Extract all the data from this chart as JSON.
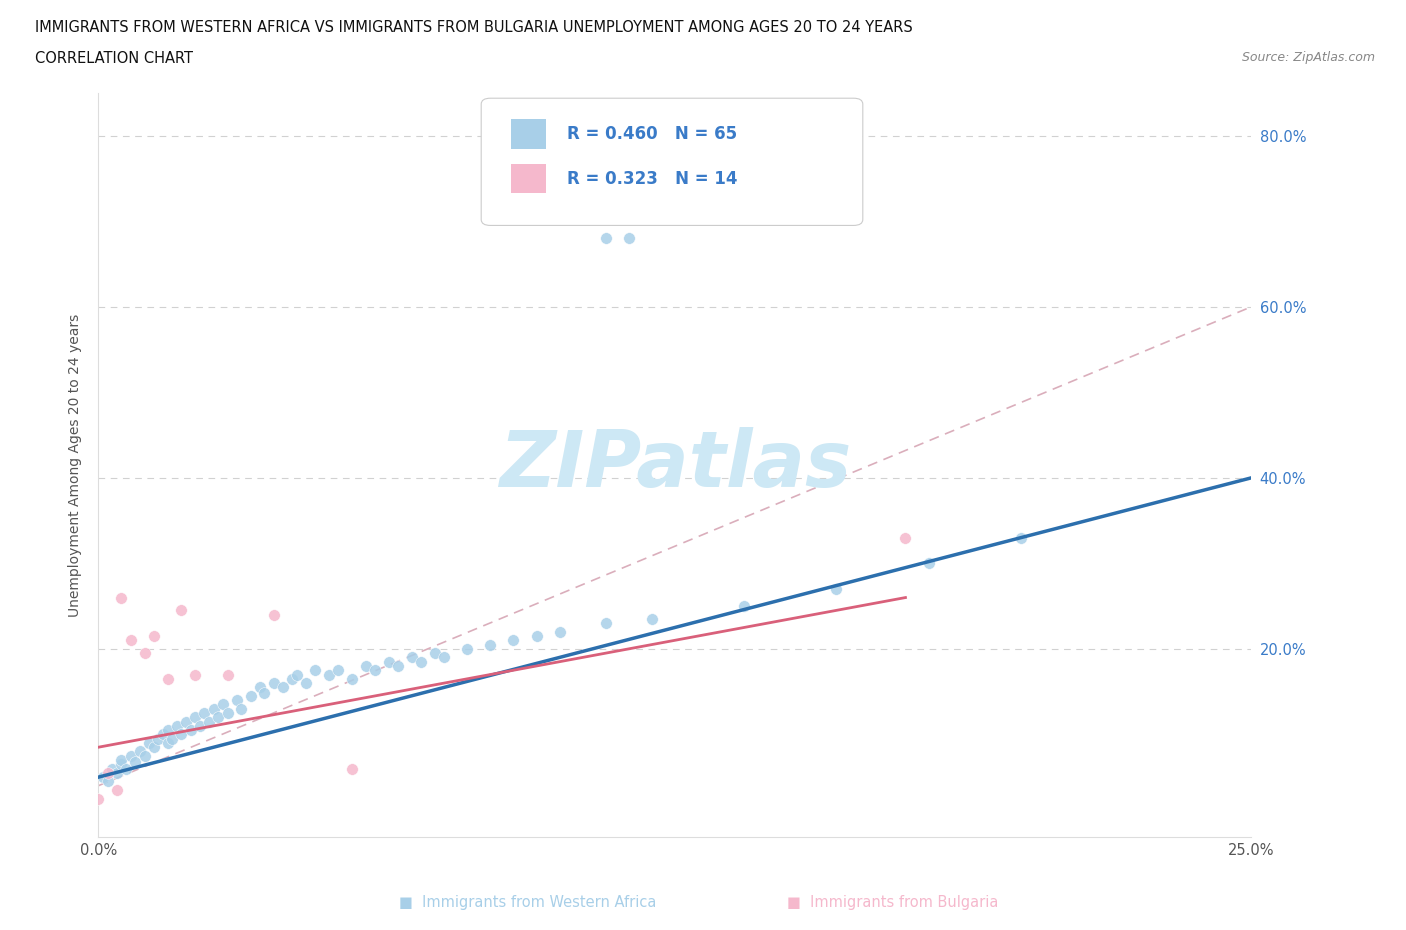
{
  "title_line1": "IMMIGRANTS FROM WESTERN AFRICA VS IMMIGRANTS FROM BULGARIA UNEMPLOYMENT AMONG AGES 20 TO 24 YEARS",
  "title_line2": "CORRELATION CHART",
  "source": "Source: ZipAtlas.com",
  "ylabel": "Unemployment Among Ages 20 to 24 years",
  "xlim": [
    0.0,
    0.25
  ],
  "ylim": [
    -0.02,
    0.85
  ],
  "color_western_africa": "#a8cfe8",
  "color_bulgaria": "#f5b8cc",
  "color_line_western_africa": "#2c6fad",
  "color_line_bulgaria": "#d9607a",
  "color_dashed": "#d4a0b0",
  "color_axis_blue": "#3a7bc8",
  "watermark_color": "#cde8f5",
  "western_africa_R": 0.46,
  "western_africa_N": 65,
  "bulgaria_R": 0.323,
  "bulgaria_N": 14,
  "wa_x": [
    0.001,
    0.002,
    0.003,
    0.004,
    0.005,
    0.005,
    0.006,
    0.007,
    0.008,
    0.009,
    0.01,
    0.011,
    0.012,
    0.013,
    0.014,
    0.015,
    0.015,
    0.016,
    0.017,
    0.018,
    0.019,
    0.02,
    0.021,
    0.022,
    0.023,
    0.024,
    0.025,
    0.026,
    0.027,
    0.028,
    0.03,
    0.031,
    0.033,
    0.035,
    0.036,
    0.038,
    0.04,
    0.042,
    0.043,
    0.045,
    0.047,
    0.05,
    0.052,
    0.055,
    0.058,
    0.06,
    0.063,
    0.065,
    0.068,
    0.07,
    0.073,
    0.075,
    0.08,
    0.085,
    0.09,
    0.095,
    0.1,
    0.11,
    0.115,
    0.12,
    0.14,
    0.16,
    0.18,
    0.2,
    0.11
  ],
  "wa_y": [
    0.05,
    0.045,
    0.06,
    0.055,
    0.065,
    0.07,
    0.06,
    0.075,
    0.068,
    0.08,
    0.075,
    0.09,
    0.085,
    0.095,
    0.1,
    0.09,
    0.105,
    0.095,
    0.11,
    0.1,
    0.115,
    0.105,
    0.12,
    0.11,
    0.125,
    0.115,
    0.13,
    0.12,
    0.135,
    0.125,
    0.14,
    0.13,
    0.145,
    0.155,
    0.148,
    0.16,
    0.155,
    0.165,
    0.17,
    0.16,
    0.175,
    0.17,
    0.175,
    0.165,
    0.18,
    0.175,
    0.185,
    0.18,
    0.19,
    0.185,
    0.195,
    0.19,
    0.2,
    0.205,
    0.21,
    0.215,
    0.22,
    0.23,
    0.68,
    0.235,
    0.25,
    0.27,
    0.3,
    0.33,
    0.68
  ],
  "bu_x": [
    0.0,
    0.002,
    0.004,
    0.005,
    0.007,
    0.01,
    0.012,
    0.015,
    0.018,
    0.021,
    0.028,
    0.038,
    0.055,
    0.175
  ],
  "bu_y": [
    0.025,
    0.055,
    0.035,
    0.26,
    0.21,
    0.195,
    0.215,
    0.165,
    0.245,
    0.17,
    0.17,
    0.24,
    0.06,
    0.33
  ],
  "wa_line_x": [
    0.0,
    0.25
  ],
  "wa_line_y": [
    0.05,
    0.4
  ],
  "bu_line_x": [
    0.0,
    0.175
  ],
  "bu_line_y": [
    0.085,
    0.26
  ],
  "dash_line_x": [
    0.0,
    0.25
  ],
  "dash_line_y": [
    0.04,
    0.6
  ]
}
